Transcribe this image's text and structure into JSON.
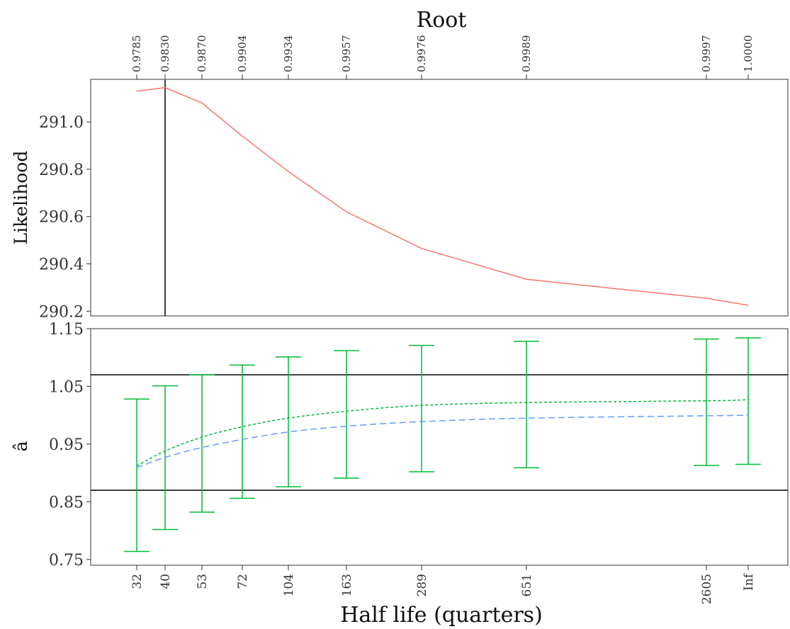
{
  "chart_data": [
    {
      "type": "line",
      "title": "Root",
      "ylabel": "Likelihood",
      "xlabel": "",
      "x_scale": "categorical-nonlinear (half life)",
      "top_axis_title": "Root",
      "top_axis_ticks": [
        "0.9785",
        "0.9830",
        "0.9870",
        "0.9904",
        "0.9934",
        "0.9957",
        "0.9976",
        "0.9989",
        "0.9997",
        "1.0000"
      ],
      "x": [
        32,
        40,
        53,
        72,
        104,
        163,
        289,
        651,
        2605,
        "Inf"
      ],
      "yticks": [
        "290.2",
        "290.4",
        "290.6",
        "290.8",
        "291.0"
      ],
      "ylim": [
        290.18,
        291.18
      ],
      "series": [
        {
          "color": "#f8766d",
          "style": "solid",
          "values": [
            291.13,
            291.145,
            291.08,
            290.94,
            290.79,
            290.62,
            290.465,
            290.335,
            290.255,
            290.225
          ]
        }
      ],
      "vline": {
        "x": 40,
        "color": "#000000"
      },
      "grid": false
    },
    {
      "type": "line",
      "ylabel": "â",
      "xlabel": "Half life (quarters)",
      "x": [
        32,
        40,
        53,
        72,
        104,
        163,
        289,
        651,
        2605,
        "Inf"
      ],
      "xticks": [
        "32",
        "40",
        "53",
        "72",
        "104",
        "163",
        "289",
        "651",
        "2605",
        "Inf"
      ],
      "yticks": [
        "0.75",
        "0.85",
        "0.95",
        "1.05",
        "1.15"
      ],
      "ylim": [
        0.74,
        1.15
      ],
      "hlines": [
        1.07,
        0.87
      ],
      "series": [
        {
          "color": "#00ba38",
          "style": "dotted",
          "values": [
            0.912,
            0.938,
            0.962,
            0.98,
            0.995,
            1.007,
            1.017,
            1.022,
            1.025,
            1.027
          ]
        },
        {
          "color": "#619cff",
          "style": "dashed",
          "values": [
            0.909,
            0.927,
            0.944,
            0.958,
            0.971,
            0.981,
            0.989,
            0.995,
            0.999,
            1.0
          ]
        }
      ],
      "error_bars": {
        "color": "#00ba38",
        "low": [
          0.764,
          0.802,
          0.832,
          0.856,
          0.876,
          0.891,
          0.902,
          0.909,
          0.913,
          0.915
        ],
        "high": [
          1.028,
          1.051,
          1.07,
          1.087,
          1.101,
          1.112,
          1.121,
          1.128,
          1.132,
          1.134
        ]
      },
      "grid": false
    }
  ]
}
